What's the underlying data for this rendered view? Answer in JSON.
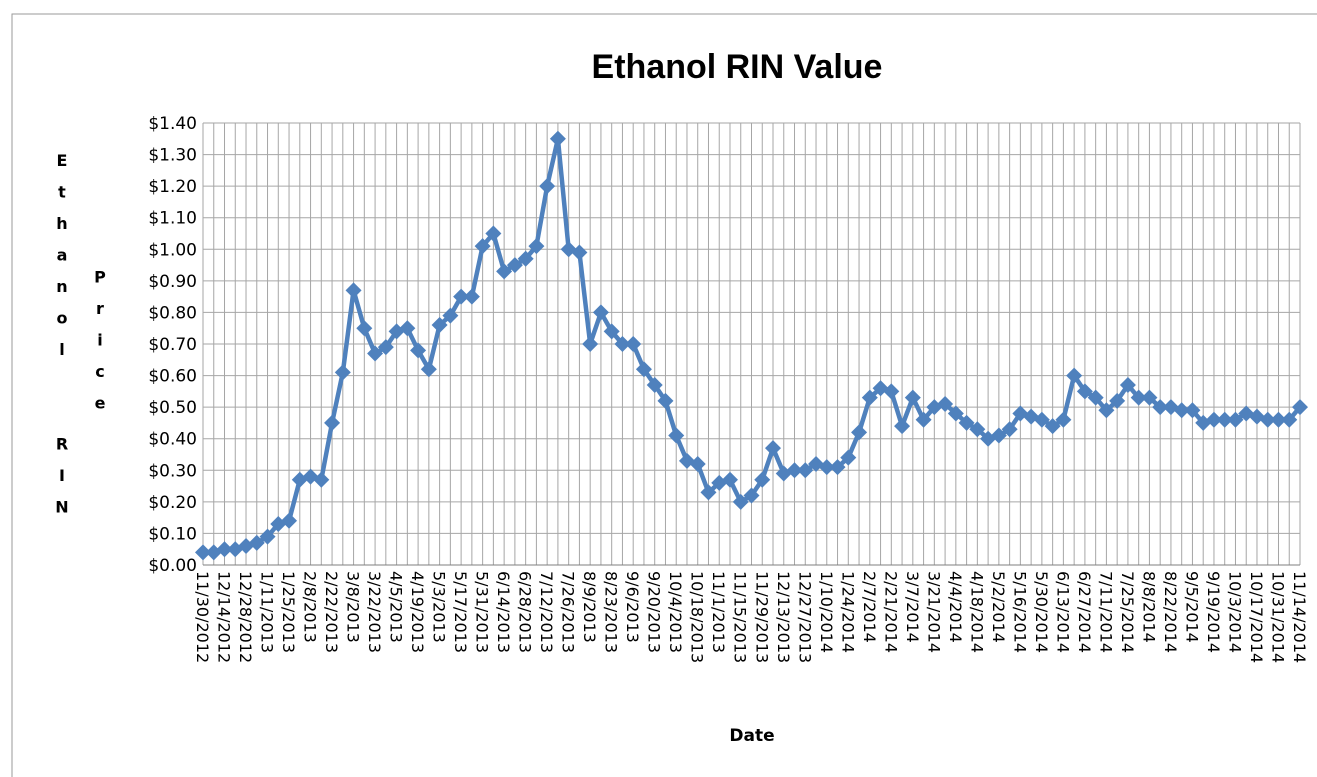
{
  "chart_data": {
    "type": "line",
    "title": "Ethanol RIN Value",
    "xlabel": "Date",
    "ylabel": "Ethanol RIN Price",
    "categories": [
      "11/30/2012",
      null,
      "12/14/2012",
      null,
      "12/28/2012",
      null,
      "1/11/2013",
      null,
      "1/25/2013",
      null,
      "2/8/2013",
      null,
      "2/22/2013",
      null,
      "3/8/2013",
      null,
      "3/22/2013",
      null,
      "4/5/2013",
      null,
      "4/19/2013",
      null,
      "5/3/2013",
      null,
      "5/17/2013",
      null,
      "5/31/2013",
      null,
      "6/14/2013",
      null,
      "6/28/2013",
      null,
      "7/12/2013",
      null,
      "7/26/2013",
      null,
      "8/9/2013",
      null,
      "8/23/2013",
      null,
      "9/6/2013",
      null,
      "9/20/2013",
      null,
      "10/4/2013",
      null,
      "10/18/2013",
      null,
      "11/1/2013",
      null,
      "11/15/2013",
      null,
      "11/29/2013",
      null,
      "12/13/2013",
      null,
      "12/27/2013",
      null,
      "1/10/2014",
      null,
      "1/24/2014",
      null,
      "2/7/2014",
      null,
      "2/21/2014",
      null,
      "3/7/2014",
      null,
      "3/21/2014",
      null,
      "4/4/2014",
      null,
      "4/18/2014",
      null,
      "5/2/2014",
      null,
      "5/16/2014",
      null,
      "5/30/2014",
      null,
      "6/13/2014",
      null,
      "6/27/2014",
      null,
      "7/11/2014",
      null,
      "7/25/2014",
      null,
      "8/8/2014",
      null,
      "8/22/2014",
      null,
      "9/5/2014",
      null,
      "9/19/2014",
      null,
      "10/3/2014",
      null,
      "10/17/2014",
      null,
      "10/31/2014",
      null,
      "11/14/2014"
    ],
    "values": [
      0.04,
      0.04,
      0.05,
      0.05,
      0.06,
      0.07,
      0.09,
      0.13,
      0.14,
      0.27,
      0.28,
      0.27,
      0.45,
      0.61,
      0.87,
      0.75,
      0.67,
      0.69,
      0.74,
      0.75,
      0.68,
      0.62,
      0.76,
      0.79,
      0.85,
      0.85,
      1.01,
      1.05,
      0.93,
      0.95,
      0.97,
      1.01,
      1.2,
      1.35,
      1.0,
      0.99,
      0.7,
      0.8,
      0.74,
      0.7,
      0.7,
      0.62,
      0.57,
      0.52,
      0.41,
      0.33,
      0.32,
      0.23,
      0.26,
      0.27,
      0.2,
      0.22,
      0.27,
      0.37,
      0.29,
      0.3,
      0.3,
      0.32,
      0.31,
      0.31,
      0.34,
      0.42,
      0.53,
      0.56,
      0.55,
      0.44,
      0.53,
      0.46,
      0.5,
      0.51,
      0.48,
      0.45,
      0.43,
      0.4,
      0.41,
      0.43,
      0.48,
      0.47,
      0.46,
      0.44,
      0.46,
      0.6,
      0.55,
      0.53,
      0.49,
      0.52,
      0.57,
      0.53,
      0.53,
      0.5,
      0.5,
      0.49,
      0.49,
      0.45,
      0.46,
      0.46,
      0.46,
      0.48,
      0.47,
      0.46,
      0.46,
      0.46,
      0.5
    ],
    "color": "#4f81bd",
    "ylim": [
      0,
      1.4
    ],
    "yticks": [
      {
        "value": 0,
        "label": "$0.00"
      },
      {
        "value": 0.1,
        "label": "$0.10"
      },
      {
        "value": 0.2,
        "label": "$0.20"
      },
      {
        "value": 0.3,
        "label": "$0.30"
      },
      {
        "value": 0.4,
        "label": "$0.40"
      },
      {
        "value": 0.5,
        "label": "$0.50"
      },
      {
        "value": 0.6,
        "label": "$0.60"
      },
      {
        "value": 0.7,
        "label": "$0.70"
      },
      {
        "value": 0.8,
        "label": "$0.80"
      },
      {
        "value": 0.9,
        "label": "$0.90"
      },
      {
        "value": 1.0,
        "label": "$1.00"
      },
      {
        "value": 1.1,
        "label": "$1.10"
      },
      {
        "value": 1.2,
        "label": "$1.20"
      },
      {
        "value": 1.3,
        "label": "$1.30"
      },
      {
        "value": 1.4,
        "label": "$1.40"
      }
    ],
    "grid": true
  }
}
